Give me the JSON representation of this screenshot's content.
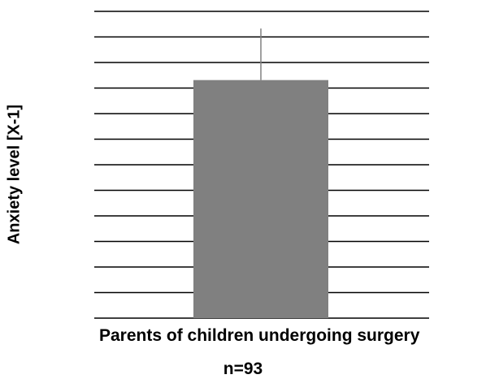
{
  "chart_data": {
    "type": "bar",
    "categories": [
      "Parents of children undergoing surgery"
    ],
    "values": [
      9.7
    ],
    "error_upper": [
      11.8
    ],
    "ylim": [
      0,
      12.5
    ],
    "grid": true,
    "ylabel": "Anxiety level  [X-1]",
    "xlabel": "Parents of children undergoing surgery",
    "annotation": "n=93",
    "bar_color": "#808080",
    "grid_color": "#000000",
    "error_color": "#808080"
  }
}
